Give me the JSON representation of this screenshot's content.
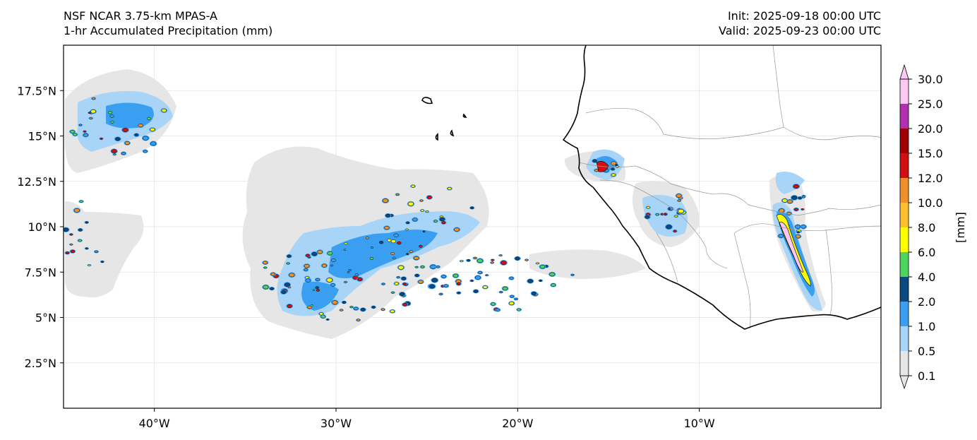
{
  "titles": {
    "left_line1": "NSF NCAR 3.75-km MPAS-A",
    "left_line2": "1-hr Accumulated Precipitation (mm)",
    "right_line1": "Init: 2025-09-18 00:00 UTC",
    "right_line2": "Valid: 2025-09-23 00:00 UTC"
  },
  "map": {
    "lon_range": [
      -45,
      0
    ],
    "lat_range": [
      0,
      20
    ],
    "lon_ticks": [
      {
        "value": -40,
        "label": "40°W"
      },
      {
        "value": -30,
        "label": "30°W"
      },
      {
        "value": -20,
        "label": "20°W"
      },
      {
        "value": -10,
        "label": "10°W"
      }
    ],
    "lat_ticks": [
      {
        "value": 17.5,
        "label": "17.5°N"
      },
      {
        "value": 15,
        "label": "15°N"
      },
      {
        "value": 12.5,
        "label": "12.5°N"
      },
      {
        "value": 10,
        "label": "10°N"
      },
      {
        "value": 7.5,
        "label": "7.5°N"
      },
      {
        "value": 5,
        "label": "5°N"
      },
      {
        "value": 2.5,
        "label": "2.5°N"
      }
    ],
    "gridlines": true
  },
  "colorbar": {
    "unit_label": "[mm]",
    "levels": [
      {
        "label": "0.1",
        "color": "#e6e6e6"
      },
      {
        "label": "0.5",
        "color": "#a8d4f8"
      },
      {
        "label": "1.0",
        "color": "#3a9ff0"
      },
      {
        "label": "2.0",
        "color": "#0a4a80"
      },
      {
        "label": "4.0",
        "color": "#4cd660"
      },
      {
        "label": "6.0",
        "color": "#ffff00"
      },
      {
        "label": "8.0",
        "color": "#ffc030"
      },
      {
        "label": "10.0",
        "color": "#f0902a"
      },
      {
        "label": "12.0",
        "color": "#d01010"
      },
      {
        "label": "15.0",
        "color": "#a00000"
      },
      {
        "label": "20.0",
        "color": "#b030b0"
      },
      {
        "label": "25.0",
        "color": "#ffc8f4"
      },
      {
        "label": "30.0",
        "color": "#ffc8f4"
      }
    ]
  }
}
